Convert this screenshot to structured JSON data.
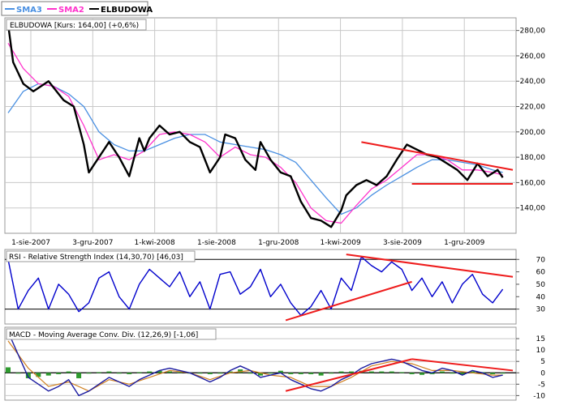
{
  "legend": [
    {
      "label": "SMA3",
      "color": "#4a90e2"
    },
    {
      "label": "SMA2",
      "color": "#ff33cc"
    },
    {
      "label": "ELBUDOWA",
      "color": "#000000"
    }
  ],
  "colors": {
    "price": "#000000",
    "sma_long": "#4a90e2",
    "sma_short": "#ff33cc",
    "rsi": "#0000cc",
    "macd": "#1a1aa0",
    "signal": "#d08020",
    "hist": "#2e9b2e",
    "trend": "#ee1c1c",
    "grid": "#c8c8c8",
    "frame": "#9a9a9a"
  },
  "chart_data": [
    {
      "type": "line",
      "title": "ELBUDOWA [Kurs: 164,00] (+0,6%)",
      "x_labels": [
        "1-sie-2007",
        "3-gru-2007",
        "1-kwi-2008",
        "1-sie-2008",
        "1-gru-2008",
        "1-kwi-2009",
        "3-sie-2009",
        "1-gru-2009"
      ],
      "y_ticks": [
        "280,00",
        "260,00",
        "240,00",
        "220,00",
        "200,00",
        "180,00",
        "160,00",
        "140,00"
      ],
      "ylim": [
        120,
        290
      ],
      "series": [
        {
          "name": "ELBUDOWA",
          "color": "#000000",
          "x": [
            0,
            0.01,
            0.03,
            0.05,
            0.08,
            0.11,
            0.13,
            0.15,
            0.16,
            0.18,
            0.2,
            0.22,
            0.24,
            0.26,
            0.27,
            0.28,
            0.3,
            0.32,
            0.34,
            0.36,
            0.38,
            0.4,
            0.42,
            0.43,
            0.45,
            0.47,
            0.49,
            0.5,
            0.52,
            0.54,
            0.56,
            0.58,
            0.6,
            0.62,
            0.64,
            0.66,
            0.67,
            0.69,
            0.71,
            0.73,
            0.75,
            0.77,
            0.79,
            0.81,
            0.83,
            0.85,
            0.87,
            0.89,
            0.91,
            0.93,
            0.95,
            0.97,
            0.98
          ],
          "y": [
            285,
            255,
            238,
            232,
            240,
            225,
            220,
            190,
            168,
            180,
            192,
            180,
            165,
            195,
            185,
            195,
            205,
            198,
            200,
            192,
            188,
            168,
            180,
            198,
            195,
            178,
            170,
            192,
            178,
            168,
            165,
            145,
            132,
            130,
            125,
            138,
            150,
            158,
            162,
            158,
            165,
            178,
            190,
            186,
            182,
            180,
            175,
            170,
            162,
            175,
            165,
            170,
            164
          ]
        },
        {
          "name": "SMA2",
          "color": "#ff33cc",
          "x": [
            0,
            0.03,
            0.06,
            0.09,
            0.12,
            0.15,
            0.18,
            0.21,
            0.24,
            0.27,
            0.3,
            0.33,
            0.36,
            0.39,
            0.42,
            0.45,
            0.48,
            0.51,
            0.54,
            0.57,
            0.6,
            0.63,
            0.66,
            0.69,
            0.72,
            0.75,
            0.78,
            0.81,
            0.84,
            0.87,
            0.9,
            0.93,
            0.96,
            0.98
          ],
          "y": [
            270,
            250,
            238,
            236,
            228,
            205,
            178,
            182,
            178,
            185,
            198,
            200,
            198,
            192,
            180,
            188,
            182,
            180,
            172,
            160,
            140,
            130,
            128,
            142,
            155,
            162,
            172,
            182,
            182,
            178,
            170,
            170,
            168,
            166
          ]
        },
        {
          "name": "SMA3",
          "color": "#4a90e2",
          "x": [
            0,
            0.03,
            0.06,
            0.09,
            0.12,
            0.15,
            0.18,
            0.21,
            0.24,
            0.27,
            0.3,
            0.33,
            0.36,
            0.39,
            0.42,
            0.45,
            0.48,
            0.51,
            0.54,
            0.57,
            0.6,
            0.63,
            0.66,
            0.69,
            0.72,
            0.75,
            0.78,
            0.81,
            0.84,
            0.87,
            0.9,
            0.93,
            0.96,
            0.98
          ],
          "y": [
            215,
            232,
            238,
            236,
            230,
            220,
            200,
            190,
            185,
            185,
            190,
            195,
            198,
            198,
            192,
            190,
            188,
            186,
            182,
            176,
            162,
            148,
            135,
            140,
            150,
            158,
            165,
            172,
            178,
            178,
            176,
            174,
            170,
            168
          ]
        }
      ],
      "annotations": [
        {
          "kind": "trendline",
          "x": [
            0.7,
            1.0
          ],
          "y": [
            192,
            170
          ]
        },
        {
          "kind": "trendline",
          "x": [
            0.8,
            1.0
          ],
          "y": [
            159,
            159
          ]
        }
      ]
    },
    {
      "type": "line",
      "title": "RSI - Relative Strength Index (14,30,70) [46,03]",
      "y_ticks": [
        "70",
        "60",
        "50",
        "40",
        "30"
      ],
      "ylim": [
        18,
        78
      ],
      "reference_lines": [
        30,
        70
      ],
      "series": [
        {
          "name": "RSI",
          "color": "#0000cc",
          "x": [
            0,
            0.02,
            0.04,
            0.06,
            0.08,
            0.1,
            0.12,
            0.14,
            0.16,
            0.18,
            0.2,
            0.22,
            0.24,
            0.26,
            0.28,
            0.3,
            0.32,
            0.34,
            0.36,
            0.38,
            0.4,
            0.42,
            0.44,
            0.46,
            0.48,
            0.5,
            0.52,
            0.54,
            0.56,
            0.58,
            0.6,
            0.62,
            0.64,
            0.66,
            0.68,
            0.7,
            0.72,
            0.74,
            0.76,
            0.78,
            0.8,
            0.82,
            0.84,
            0.86,
            0.88,
            0.9,
            0.92,
            0.94,
            0.96,
            0.98
          ],
          "y": [
            70,
            30,
            45,
            55,
            30,
            50,
            42,
            28,
            35,
            55,
            60,
            40,
            30,
            50,
            62,
            55,
            48,
            60,
            40,
            52,
            30,
            58,
            60,
            42,
            48,
            62,
            40,
            50,
            35,
            25,
            32,
            45,
            30,
            55,
            45,
            72,
            65,
            60,
            68,
            62,
            45,
            55,
            40,
            52,
            35,
            50,
            58,
            42,
            35,
            46
          ]
        }
      ],
      "annotations": [
        {
          "kind": "trendline",
          "x": [
            0.55,
            0.8
          ],
          "y": [
            21,
            52
          ]
        },
        {
          "kind": "trendline",
          "x": [
            0.67,
            1.0
          ],
          "y": [
            74,
            56
          ]
        }
      ]
    },
    {
      "type": "line",
      "title": "MACD - Moving Average Conv. Div. (12,26,9) [-1,06]",
      "y_ticks": [
        "15",
        "10",
        "5",
        "0",
        "-5",
        "-10"
      ],
      "ylim": [
        -12,
        20
      ],
      "series": [
        {
          "name": "MACD",
          "color": "#1a1aa0",
          "x": [
            0,
            0.02,
            0.04,
            0.06,
            0.08,
            0.1,
            0.12,
            0.14,
            0.16,
            0.18,
            0.2,
            0.22,
            0.24,
            0.26,
            0.28,
            0.3,
            0.32,
            0.34,
            0.36,
            0.38,
            0.4,
            0.42,
            0.44,
            0.46,
            0.48,
            0.5,
            0.52,
            0.54,
            0.56,
            0.58,
            0.6,
            0.62,
            0.64,
            0.66,
            0.68,
            0.7,
            0.72,
            0.74,
            0.76,
            0.78,
            0.8,
            0.82,
            0.84,
            0.86,
            0.88,
            0.9,
            0.92,
            0.94,
            0.96,
            0.98
          ],
          "y": [
            18,
            8,
            -2,
            -5,
            -8,
            -6,
            -3,
            -10,
            -8,
            -5,
            -2,
            -4,
            -6,
            -3,
            -1,
            1,
            2,
            1,
            0,
            -2,
            -4,
            -2,
            1,
            3,
            1,
            -2,
            -1,
            0,
            -3,
            -5,
            -7,
            -8,
            -6,
            -3,
            -1,
            2,
            4,
            5,
            6,
            5,
            3,
            1,
            0,
            2,
            1,
            -1,
            1,
            0,
            -2,
            -1
          ]
        },
        {
          "name": "Signal",
          "color": "#d08020",
          "x": [
            0,
            0.04,
            0.08,
            0.12,
            0.16,
            0.2,
            0.24,
            0.28,
            0.32,
            0.36,
            0.4,
            0.44,
            0.48,
            0.52,
            0.56,
            0.6,
            0.64,
            0.68,
            0.72,
            0.76,
            0.8,
            0.84,
            0.88,
            0.92,
            0.96,
            0.98
          ],
          "y": [
            14,
            2,
            -6,
            -4,
            -8,
            -3,
            -5,
            -2,
            1,
            0,
            -3,
            0,
            1,
            -1,
            -2,
            -6,
            -6,
            -2,
            3,
            5,
            4,
            1,
            1,
            0,
            -1,
            -1
          ]
        }
      ],
      "annotations": [
        {
          "kind": "trendline",
          "x": [
            0.55,
            0.8
          ],
          "y": [
            -8,
            6
          ]
        },
        {
          "kind": "trendline",
          "x": [
            0.8,
            1.0
          ],
          "y": [
            6,
            1
          ]
        }
      ]
    }
  ]
}
